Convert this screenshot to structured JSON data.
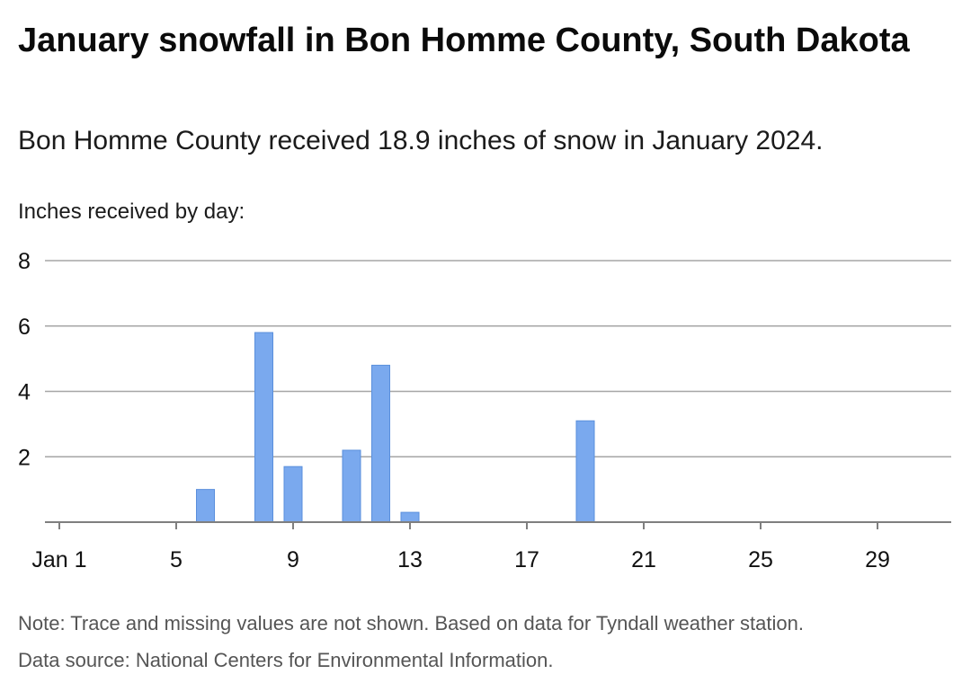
{
  "header": {
    "title": "January snowfall in Bon Homme County, South Dakota",
    "subtitle": "Bon Homme County received 18.9 inches of snow in January 2024."
  },
  "footer": {
    "note": "Note: Trace and missing values are not shown. Based on data for Tyndall weather station.",
    "source": "Data source: National Centers for Environmental Information."
  },
  "chart_data": {
    "type": "bar",
    "title": "January snowfall in Bon Homme County, South Dakota",
    "subtitle": "Bon Homme County received 18.9 inches of snow in January 2024.",
    "ylabel": "Inches received by day:",
    "xlabel": "",
    "xlim": [
      1,
      31
    ],
    "ylim": [
      0,
      8
    ],
    "yticks": [
      2,
      4,
      6,
      8
    ],
    "xtick_values": [
      1,
      5,
      9,
      13,
      17,
      21,
      25,
      29
    ],
    "xtick_labels": [
      "Jan 1",
      "5",
      "9",
      "13",
      "17",
      "21",
      "25",
      "29"
    ],
    "grid": true,
    "bar_color": "#7aa9ee",
    "bar_stroke": "#5a8fdc",
    "categories": [
      6,
      8,
      9,
      11,
      12,
      13,
      19
    ],
    "values": [
      1.0,
      5.8,
      1.7,
      2.2,
      4.8,
      0.3,
      3.1
    ]
  }
}
